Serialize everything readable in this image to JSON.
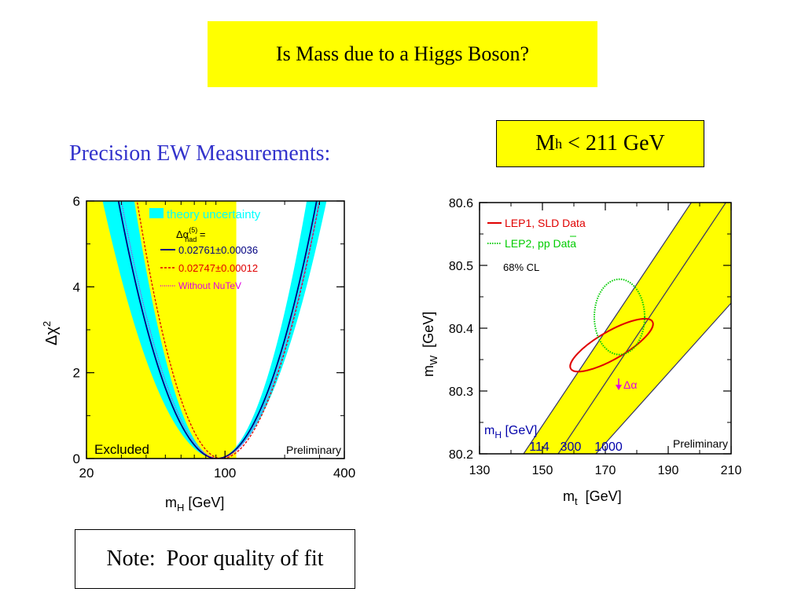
{
  "slide": {
    "title": "Is Mass due to a Higgs Boson?",
    "subtitle": "Precision EW Measurements:",
    "mh_limit": {
      "symbol": "M",
      "sub": "h",
      "rest": " < 211 GeV"
    },
    "note": "Note:  Poor quality of fit"
  },
  "colors": {
    "yellow": "#ffff00",
    "cyan": "#00ffff",
    "blue_text": "#3333cc",
    "red": "#e00000",
    "green": "#00cc00",
    "magenta": "#e000e0",
    "navy": "#000080"
  },
  "chart_data": [
    {
      "type": "line",
      "xlabel_main": "m",
      "xlabel_sub": "H",
      "xlabel_unit": " [GeV]",
      "ylabel_main": "Δχ",
      "ylabel_sup": "2",
      "xscale": "log",
      "xlim": [
        20,
        400
      ],
      "ylim": [
        0,
        6
      ],
      "xticks": [
        "20",
        "100",
        "400"
      ],
      "yticks": [
        "0",
        "2",
        "4",
        "6"
      ],
      "excluded_region": {
        "from": 20,
        "to": 114,
        "label": "Excluded"
      },
      "corner_label": "Preliminary",
      "legend": {
        "band": "theory uncertainty",
        "alpha_header": "Δα",
        "alpha_sup": "(5)",
        "alpha_sub": "had",
        "alpha_eq": " =",
        "entries": [
          {
            "label": "0.02761±0.00036",
            "color": "#000080",
            "style": "solid"
          },
          {
            "label": "0.02747±0.00012",
            "color": "#e00000",
            "style": "dashed"
          },
          {
            "label": "Without NuTeV",
            "color": "#e000e0",
            "style": "dotted"
          }
        ]
      },
      "series": [
        {
          "name": "0.02761±0.00036",
          "center_mh": 91,
          "min_chi2": 0,
          "left_at_6": 29,
          "right_at_6": 290
        },
        {
          "name": "0.02747±0.00012",
          "center_mh": 96,
          "min_chi2": 0,
          "left_at_6": 36,
          "right_at_6": 300
        },
        {
          "name": "Without NuTeV",
          "center_mh": 93,
          "min_chi2": 0,
          "left_at_6": 30,
          "right_at_6": 300
        }
      ],
      "band": {
        "center_mh": 91,
        "left_half_width_log": 0.08,
        "right_half_width_log": 0.05
      }
    },
    {
      "type": "scatter",
      "xlabel_main": "m",
      "xlabel_sub": "t",
      "xlabel_unit": "  [GeV]",
      "ylabel_main": "m",
      "ylabel_sub": "W",
      "ylabel_unit": "  [GeV]",
      "xlim": [
        130,
        210
      ],
      "ylim": [
        80.2,
        80.6
      ],
      "xticks": [
        "130",
        "150",
        "170",
        "190",
        "210"
      ],
      "yticks": [
        "80.2",
        "80.3",
        "80.4",
        "80.5",
        "80.6"
      ],
      "corner_label": "Preliminary",
      "cl_label": "68% CL",
      "legend": [
        {
          "label": "LEP1, SLD Data",
          "color": "#e00000",
          "style": "solid"
        },
        {
          "label": "LEP2, pp Data",
          "color": "#00cc00",
          "style": "dotted"
        }
      ],
      "ellipses": [
        {
          "name": "LEP1, SLD Data",
          "cx": 172,
          "cy": 80.373,
          "rx": 15,
          "ry": 0.022,
          "angle": -30,
          "color": "#e00000"
        },
        {
          "name": "LEP2, pp Data",
          "cx": 174.5,
          "cy": 80.418,
          "rx": 8,
          "ry": 0.06,
          "angle": 0,
          "color": "#00cc00"
        }
      ],
      "higgs_band": {
        "mh_labels_title": "m",
        "mh_labels_sub": "H",
        "mh_labels_unit": " [GeV]",
        "lines": [
          {
            "mh": "114",
            "x0": 144,
            "y0": 80.2,
            "x1": 210,
            "y1": 80.695
          },
          {
            "mh": "300",
            "x0": 155,
            "y0": 80.2,
            "x1": 210,
            "y1": 80.6125
          },
          {
            "mh": "1000",
            "x0": 167,
            "y0": 80.2,
            "x1": 210,
            "y1": 80.44
          }
        ],
        "label_x": [
          149,
          159,
          171
        ]
      },
      "delta_alpha_label": "Δα"
    }
  ]
}
